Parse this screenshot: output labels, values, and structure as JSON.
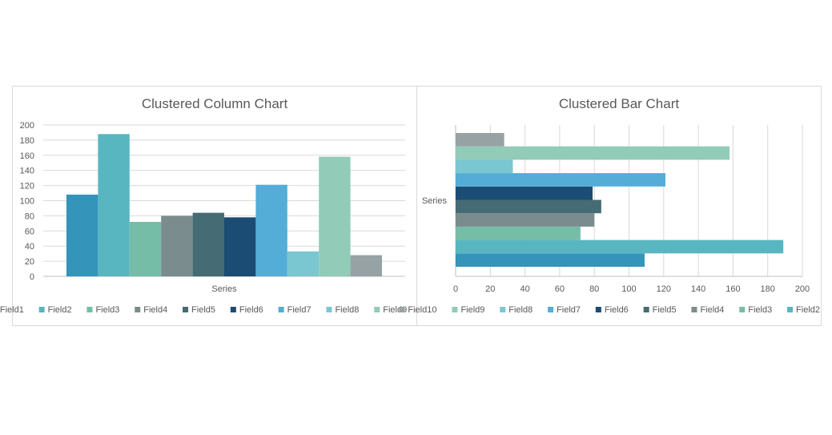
{
  "charts": [
    {
      "id": "column",
      "chart_data": {
        "type": "bar",
        "orientation": "vertical",
        "title": "Clustered Column Chart",
        "categories": [
          "Series"
        ],
        "series": [
          {
            "name": "Field1",
            "values": [
              108
            ],
            "color": "#3494BA"
          },
          {
            "name": "Field2",
            "values": [
              188
            ],
            "color": "#58B6C0"
          },
          {
            "name": "Field3",
            "values": [
              72
            ],
            "color": "#75BDA7"
          },
          {
            "name": "Field4",
            "values": [
              80
            ],
            "color": "#7A8C8E"
          },
          {
            "name": "Field5",
            "values": [
              84
            ],
            "color": "#456B74"
          },
          {
            "name": "Field6",
            "values": [
              78
            ],
            "color": "#1B4C73"
          },
          {
            "name": "Field7",
            "values": [
              121
            ],
            "color": "#53ADD6"
          },
          {
            "name": "Field8",
            "values": [
              33
            ],
            "color": "#7AC7D2"
          },
          {
            "name": "Field9",
            "values": [
              158
            ],
            "color": "#92CBB7"
          },
          {
            "name": "Field10",
            "values": [
              28
            ],
            "color": "#96A2A4"
          }
        ],
        "ylim": [
          0,
          200
        ],
        "ticks": [
          0,
          20,
          40,
          60,
          80,
          100,
          120,
          140,
          160,
          180,
          200
        ],
        "grid": true,
        "legend": "bottom"
      }
    },
    {
      "id": "bar",
      "chart_data": {
        "type": "bar",
        "orientation": "horizontal",
        "title": "Clustered Bar Chart",
        "categories": [
          "Series"
        ],
        "series": [
          {
            "name": "Field1",
            "values": [
              109
            ],
            "color": "#3494BA"
          },
          {
            "name": "Field2",
            "values": [
              189
            ],
            "color": "#58B6C0"
          },
          {
            "name": "Field3",
            "values": [
              72
            ],
            "color": "#75BDA7"
          },
          {
            "name": "Field4",
            "values": [
              80
            ],
            "color": "#7A8C8E"
          },
          {
            "name": "Field5",
            "values": [
              84
            ],
            "color": "#456B74"
          },
          {
            "name": "Field6",
            "values": [
              79
            ],
            "color": "#1B4C73"
          },
          {
            "name": "Field7",
            "values": [
              121
            ],
            "color": "#53ADD6"
          },
          {
            "name": "Field8",
            "values": [
              33
            ],
            "color": "#7AC7D2"
          },
          {
            "name": "Field9",
            "values": [
              158
            ],
            "color": "#92CBB7"
          },
          {
            "name": "Field10",
            "values": [
              28
            ],
            "color": "#96A2A4"
          }
        ],
        "xlim": [
          0,
          200
        ],
        "ticks": [
          0,
          20,
          40,
          60,
          80,
          100,
          120,
          140,
          160,
          180,
          200
        ],
        "grid": true,
        "legend": "bottom",
        "legend_order": "reversed"
      }
    }
  ]
}
